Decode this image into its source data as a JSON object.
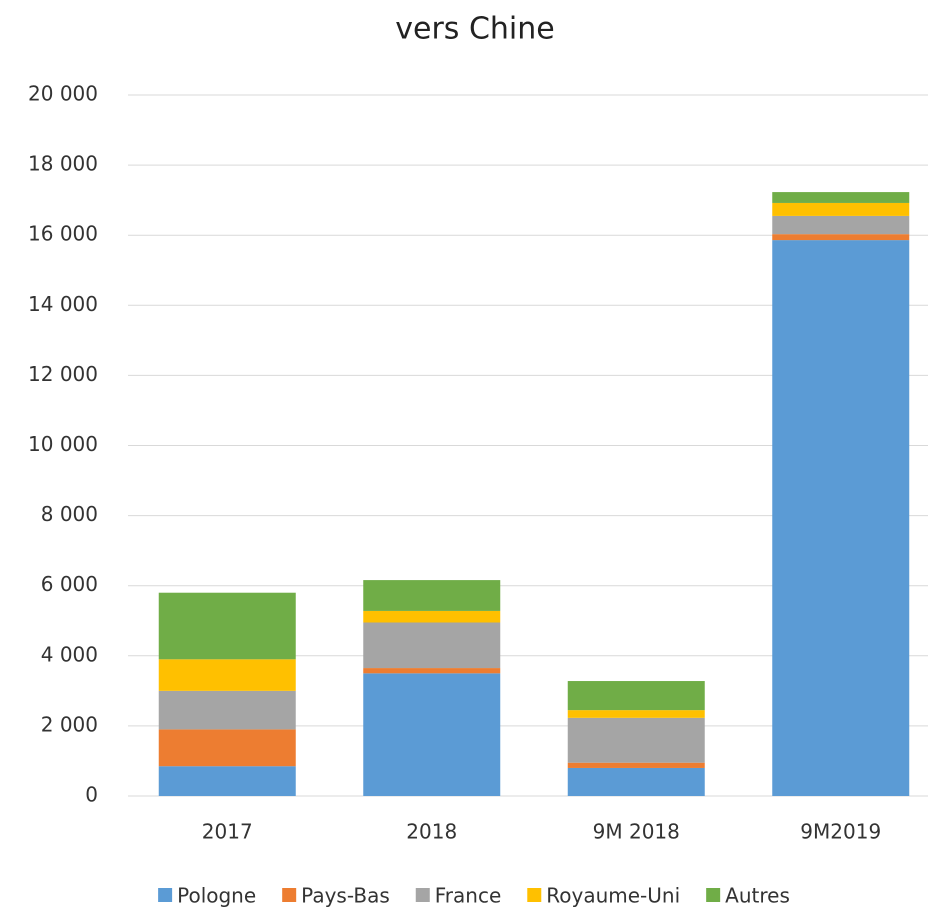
{
  "chart_data": {
    "type": "stacked_bar",
    "title": "vers Chine",
    "categories": [
      "2017",
      "2018",
      "9M 2018",
      "9M2019"
    ],
    "series": [
      {
        "name": "Pologne",
        "color": "#5b9bd5",
        "values": [
          850,
          3500,
          800,
          15860
        ]
      },
      {
        "name": "Pays-Bas",
        "color": "#ed7d31",
        "values": [
          1050,
          150,
          150,
          170
        ]
      },
      {
        "name": "France",
        "color": "#a5a5a5",
        "values": [
          1100,
          1300,
          1280,
          520
        ]
      },
      {
        "name": "Royaume-Uni",
        "color": "#ffc000",
        "values": [
          900,
          330,
          220,
          370
        ]
      },
      {
        "name": "Autres",
        "color": "#70ad47",
        "values": [
          1900,
          880,
          830,
          310
        ]
      }
    ],
    "ylim": [
      0,
      20000
    ],
    "yticks": [
      0,
      {
        "value": 2000,
        "label": "2 000"
      },
      {
        "value": 4000,
        "label": "4 000"
      },
      {
        "value": 6000,
        "label": "6 000"
      },
      {
        "value": 8000,
        "label": "8 000"
      },
      {
        "value": 10000,
        "label": "10 000"
      },
      {
        "value": 12000,
        "label": "12 000"
      },
      {
        "value": 14000,
        "label": "14 000"
      },
      {
        "value": 16000,
        "label": "16 000"
      },
      {
        "value": 18000,
        "label": "18 000"
      },
      {
        "value": 20000,
        "label": "20 000"
      }
    ],
    "grid": true,
    "legend": "bottom"
  }
}
